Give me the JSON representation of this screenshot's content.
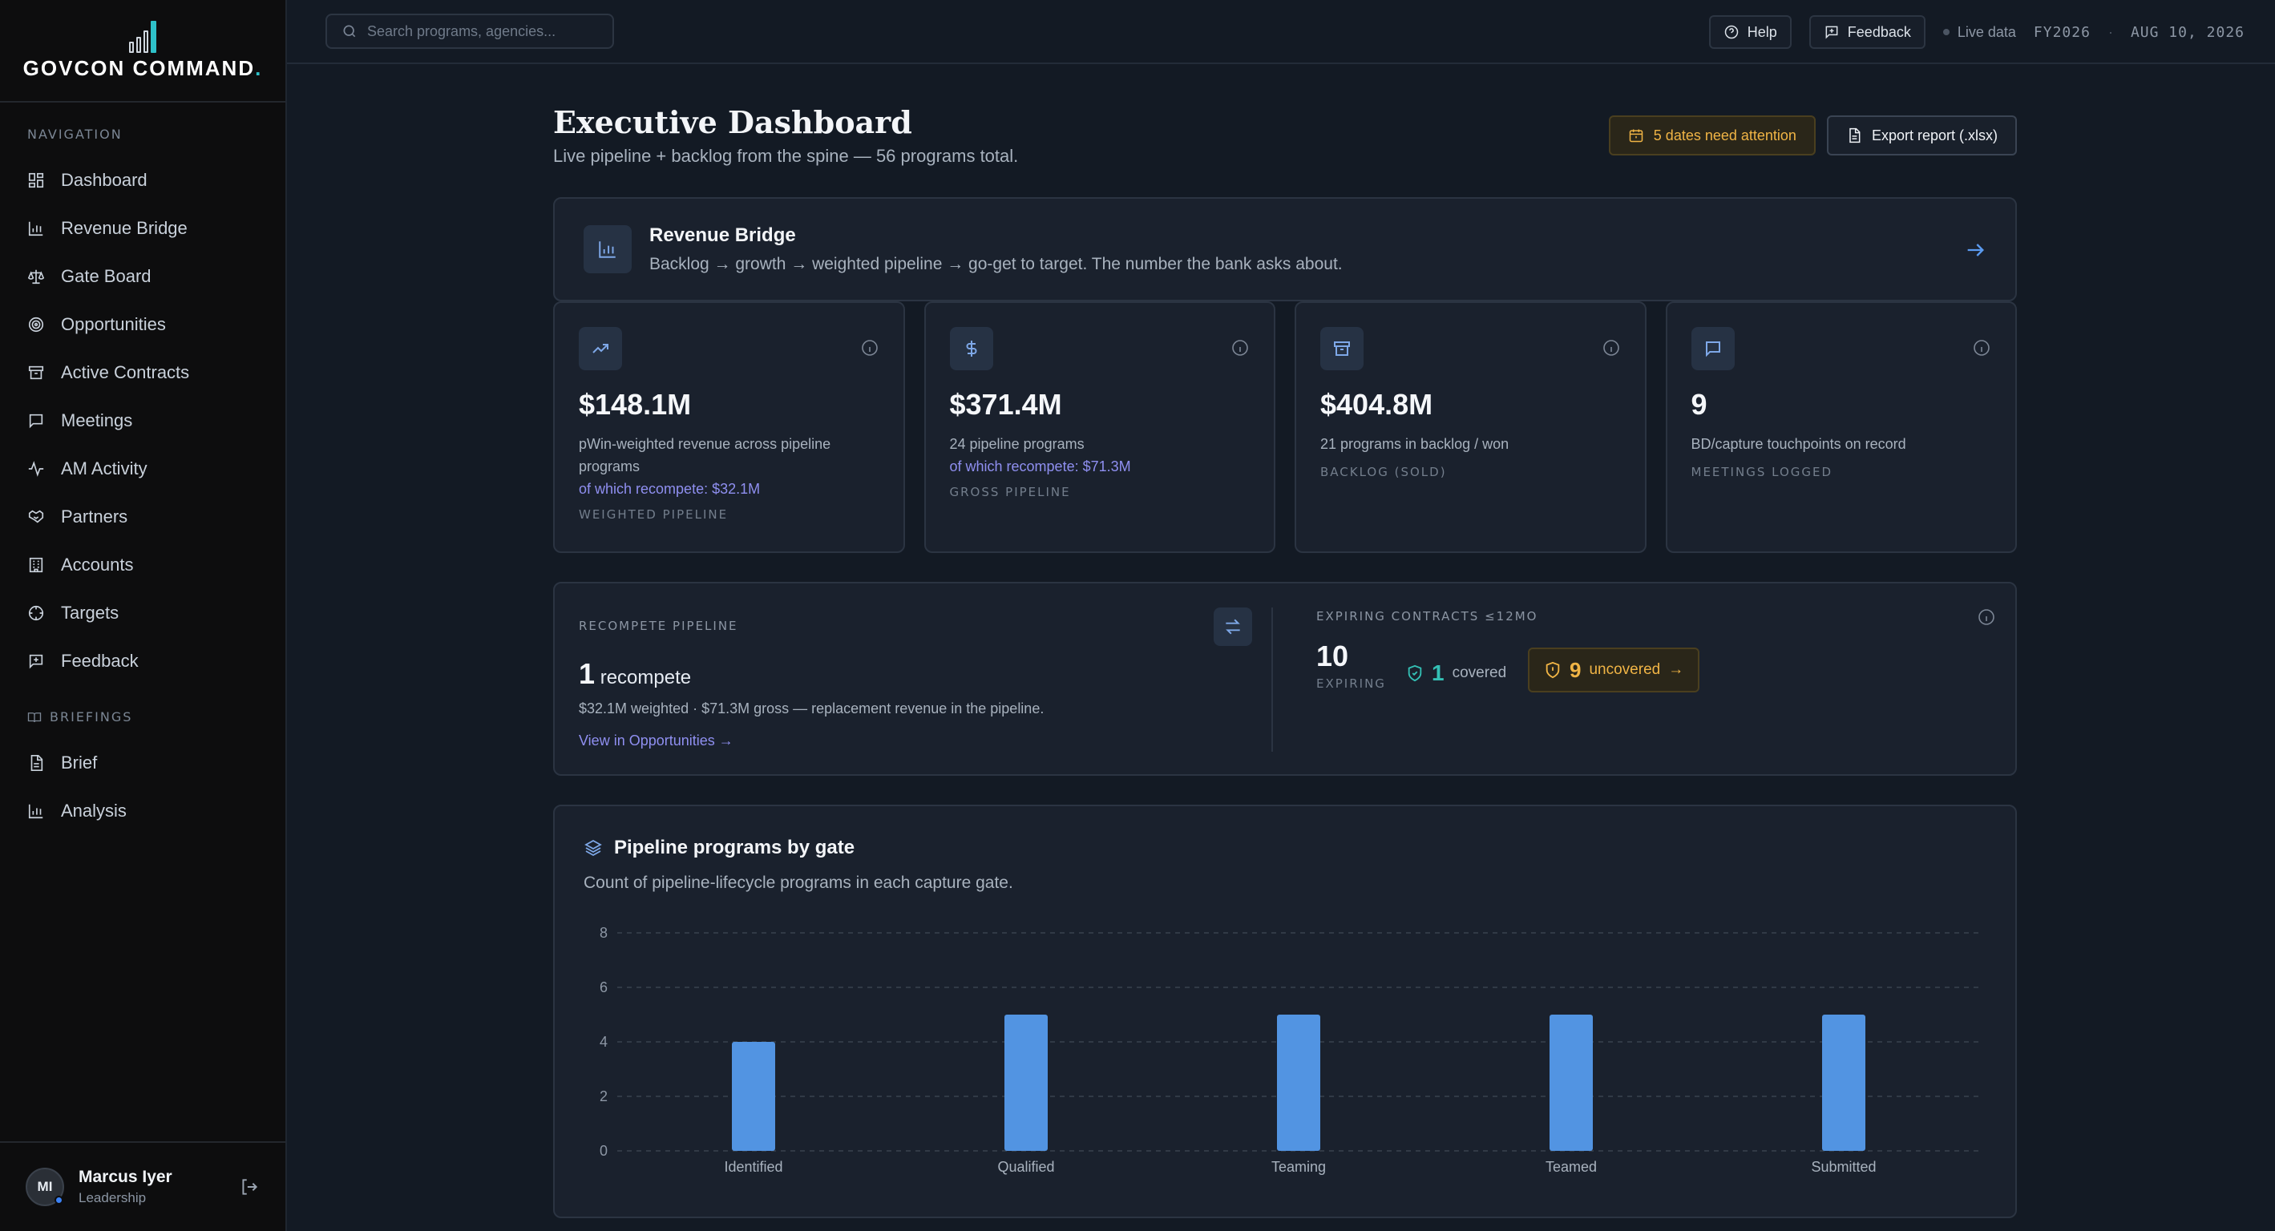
{
  "brand": {
    "name": "GOVCON COMMAND",
    "dot": "."
  },
  "sidebar": {
    "nav_title": "NAVIGATION",
    "items": [
      {
        "label": "Dashboard",
        "icon": "grid-icon"
      },
      {
        "label": "Revenue Bridge",
        "icon": "bar-chart-icon"
      },
      {
        "label": "Gate Board",
        "icon": "scale-icon"
      },
      {
        "label": "Opportunities",
        "icon": "target-icon"
      },
      {
        "label": "Active Contracts",
        "icon": "archive-icon"
      },
      {
        "label": "Meetings",
        "icon": "chat-icon"
      },
      {
        "label": "AM Activity",
        "icon": "activity-icon"
      },
      {
        "label": "Partners",
        "icon": "handshake-icon"
      },
      {
        "label": "Accounts",
        "icon": "building-icon"
      },
      {
        "label": "Targets",
        "icon": "crosshair-icon"
      },
      {
        "label": "Feedback",
        "icon": "feedback-icon"
      }
    ],
    "briefings_title": "BRIEFINGS",
    "briefings": [
      {
        "label": "Brief",
        "icon": "document-icon"
      },
      {
        "label": "Analysis",
        "icon": "bar-chart-icon"
      }
    ]
  },
  "user": {
    "initials": "MI",
    "name": "Marcus Iyer",
    "role": "Leadership"
  },
  "topbar": {
    "search_placeholder": "Search programs, agencies...",
    "help": "Help",
    "feedback": "Feedback",
    "live": "Live data",
    "fy": "FY2026",
    "sep": "·",
    "date": "AUG 10, 2026"
  },
  "header": {
    "title": "Executive Dashboard",
    "subtitle": "Live pipeline + backlog from the spine — 56 programs total.",
    "attention": "5 dates need attention",
    "export": "Export report (.xlsx)"
  },
  "bridge": {
    "title": "Revenue Bridge",
    "desc": "Backlog → growth → weighted pipeline → go-get to target. The number the bank asks about."
  },
  "kpis": [
    {
      "value": "$148.1M",
      "desc": "pWin-weighted revenue across pipeline programs",
      "sub": "of which recompete: $32.1M",
      "label": "WEIGHTED PIPELINE",
      "icon": "trend-up-icon"
    },
    {
      "value": "$371.4M",
      "desc": "24 pipeline programs",
      "sub": "of which recompete: $71.3M",
      "label": "GROSS PIPELINE",
      "icon": "dollar-icon"
    },
    {
      "value": "$404.8M",
      "desc": "21 programs in backlog / won",
      "sub": "",
      "label": "BACKLOG (SOLD)",
      "icon": "archive-icon"
    },
    {
      "value": "9",
      "desc": "BD/capture touchpoints on record",
      "sub": "",
      "label": "MEETINGS LOGGED",
      "icon": "chat-icon"
    }
  ],
  "recompete": {
    "title": "RECOMPETE PIPELINE",
    "count": "1",
    "count_label": "recompete",
    "detail": "$32.1M weighted · $71.3M gross — replacement revenue in the pipeline.",
    "link": "View in Opportunities →"
  },
  "expiring": {
    "title": "EXPIRING CONTRACTS ≤12MO",
    "count": "10",
    "label": "EXPIRING",
    "covered_count": "1",
    "covered_label": "covered",
    "uncovered_count": "9",
    "uncovered_label": "uncovered",
    "uncovered_arrow": "→"
  },
  "chart_panel": {
    "title": "Pipeline programs by gate",
    "subtitle": "Count of pipeline-lifecycle programs in each capture gate."
  },
  "chart_data": {
    "type": "bar",
    "categories": [
      "Identified",
      "Qualified",
      "Teaming",
      "Teamed",
      "Submitted"
    ],
    "values": [
      4,
      5,
      5,
      5,
      5
    ],
    "ylim": [
      0,
      8
    ],
    "yticks": [
      0,
      2,
      4,
      6,
      8
    ],
    "grid": true,
    "bar_color": "#5294e2"
  },
  "colors": {
    "accent": "#2ec1c9",
    "warning": "#f0b445",
    "link": "#8f8ff0",
    "success": "#34c0b5"
  }
}
